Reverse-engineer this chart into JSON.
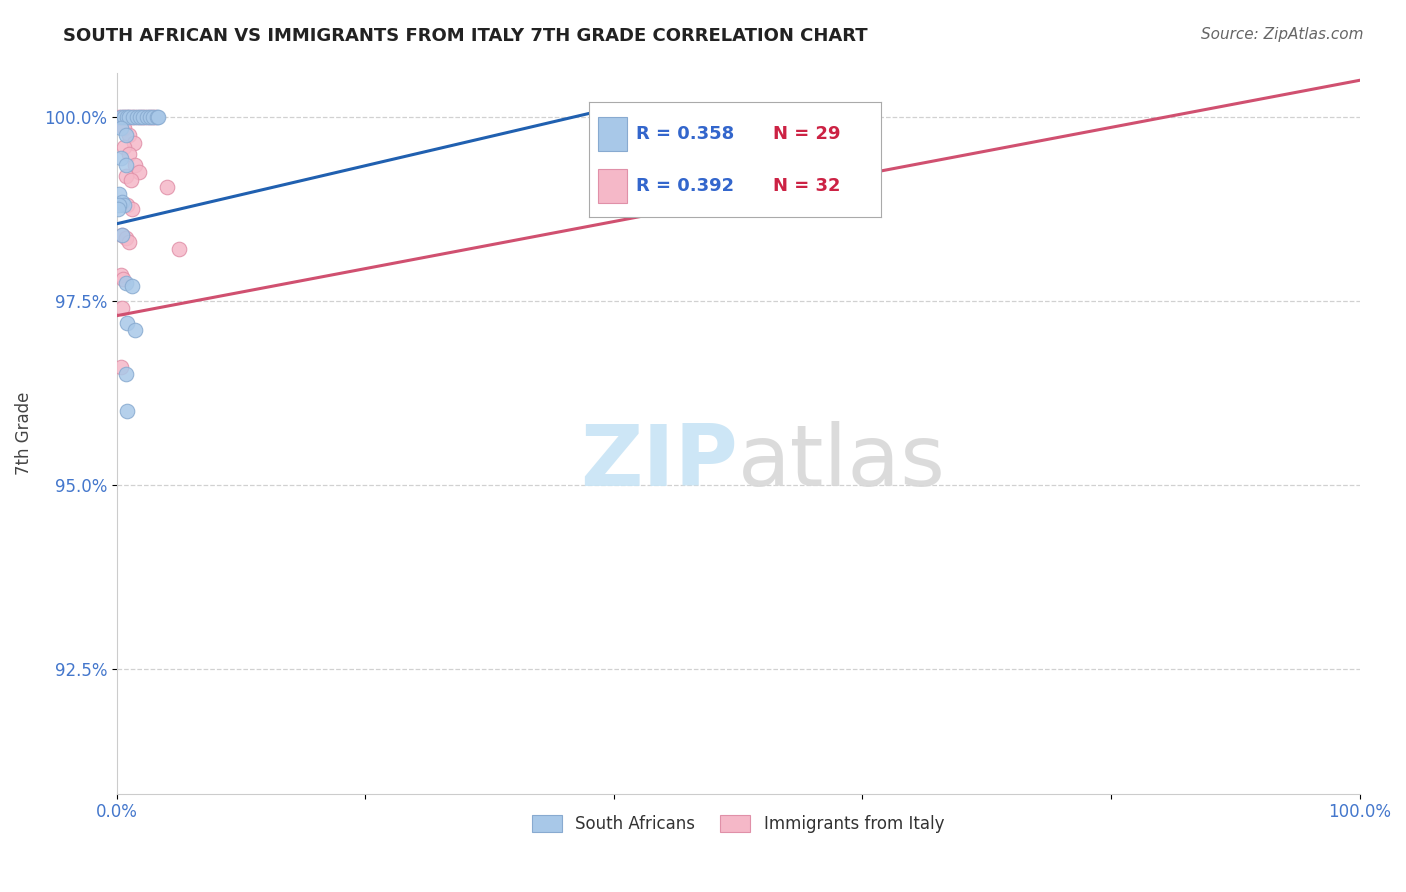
{
  "title": "SOUTH AFRICAN VS IMMIGRANTS FROM ITALY 7TH GRADE CORRELATION CHART",
  "source": "Source: ZipAtlas.com",
  "ylabel": "7th Grade",
  "xlim": [
    0.0,
    1.0
  ],
  "ylim": [
    0.908,
    1.006
  ],
  "xtick_positions": [
    0.0,
    0.2,
    0.4,
    0.6,
    0.8,
    1.0
  ],
  "xticklabels": [
    "0.0%",
    "",
    "",
    "",
    "",
    "100.0%"
  ],
  "ytick_positions": [
    0.925,
    0.95,
    0.975,
    1.0
  ],
  "yticklabels": [
    "92.5%",
    "95.0%",
    "97.5%",
    "100.0%"
  ],
  "blue_R": 0.358,
  "blue_N": 29,
  "pink_R": 0.392,
  "pink_N": 32,
  "blue_color": "#a8c8e8",
  "pink_color": "#f5b8c8",
  "blue_edge_color": "#88aad0",
  "pink_edge_color": "#e090a8",
  "blue_line_color": "#2060b0",
  "pink_line_color": "#d05070",
  "tick_color": "#4477cc",
  "grid_color": "#cccccc",
  "background_color": "#ffffff",
  "blue_scatter": [
    [
      0.003,
      1.0
    ],
    [
      0.006,
      1.0
    ],
    [
      0.008,
      1.0
    ],
    [
      0.01,
      1.0
    ],
    [
      0.013,
      1.0
    ],
    [
      0.016,
      1.0
    ],
    [
      0.019,
      1.0
    ],
    [
      0.021,
      1.0
    ],
    [
      0.024,
      1.0
    ],
    [
      0.027,
      1.0
    ],
    [
      0.029,
      1.0
    ],
    [
      0.032,
      1.0
    ],
    [
      0.003,
      0.9985
    ],
    [
      0.007,
      0.9975
    ],
    [
      0.003,
      0.9945
    ],
    [
      0.007,
      0.9935
    ],
    [
      0.002,
      0.9895
    ],
    [
      0.004,
      0.9885
    ],
    [
      0.006,
      0.988
    ],
    [
      0.002,
      0.988
    ],
    [
      0.001,
      0.9875
    ],
    [
      0.004,
      0.984
    ],
    [
      0.007,
      0.9775
    ],
    [
      0.012,
      0.977
    ],
    [
      0.033,
      1.0
    ],
    [
      0.008,
      0.972
    ],
    [
      0.015,
      0.971
    ],
    [
      0.007,
      0.965
    ],
    [
      0.008,
      0.96
    ]
  ],
  "pink_scatter": [
    [
      0.002,
      1.0
    ],
    [
      0.005,
      1.0
    ],
    [
      0.007,
      1.0
    ],
    [
      0.01,
      1.0
    ],
    [
      0.012,
      1.0
    ],
    [
      0.015,
      1.0
    ],
    [
      0.018,
      1.0
    ],
    [
      0.02,
      1.0
    ],
    [
      0.023,
      1.0
    ],
    [
      0.026,
      1.0
    ],
    [
      0.028,
      1.0
    ],
    [
      0.031,
      1.0
    ],
    [
      0.006,
      0.9985
    ],
    [
      0.01,
      0.9975
    ],
    [
      0.014,
      0.9965
    ],
    [
      0.006,
      0.996
    ],
    [
      0.01,
      0.995
    ],
    [
      0.015,
      0.9935
    ],
    [
      0.018,
      0.9925
    ],
    [
      0.007,
      0.992
    ],
    [
      0.011,
      0.9915
    ],
    [
      0.04,
      0.9905
    ],
    [
      0.008,
      0.988
    ],
    [
      0.012,
      0.9875
    ],
    [
      0.004,
      0.984
    ],
    [
      0.007,
      0.9835
    ],
    [
      0.01,
      0.983
    ],
    [
      0.05,
      0.982
    ],
    [
      0.003,
      0.9785
    ],
    [
      0.005,
      0.978
    ],
    [
      0.004,
      0.974
    ],
    [
      0.003,
      0.966
    ]
  ],
  "blue_line_x": [
    0.0,
    0.38
  ],
  "blue_line_y": [
    0.9855,
    1.0005
  ],
  "pink_line_x": [
    0.0,
    1.0
  ],
  "pink_line_y": [
    0.973,
    1.005
  ],
  "legend_text_color": "#3366cc",
  "legend_N_color": "#cc2244",
  "watermark_color": "#c8e4f5",
  "marker_size": 110
}
